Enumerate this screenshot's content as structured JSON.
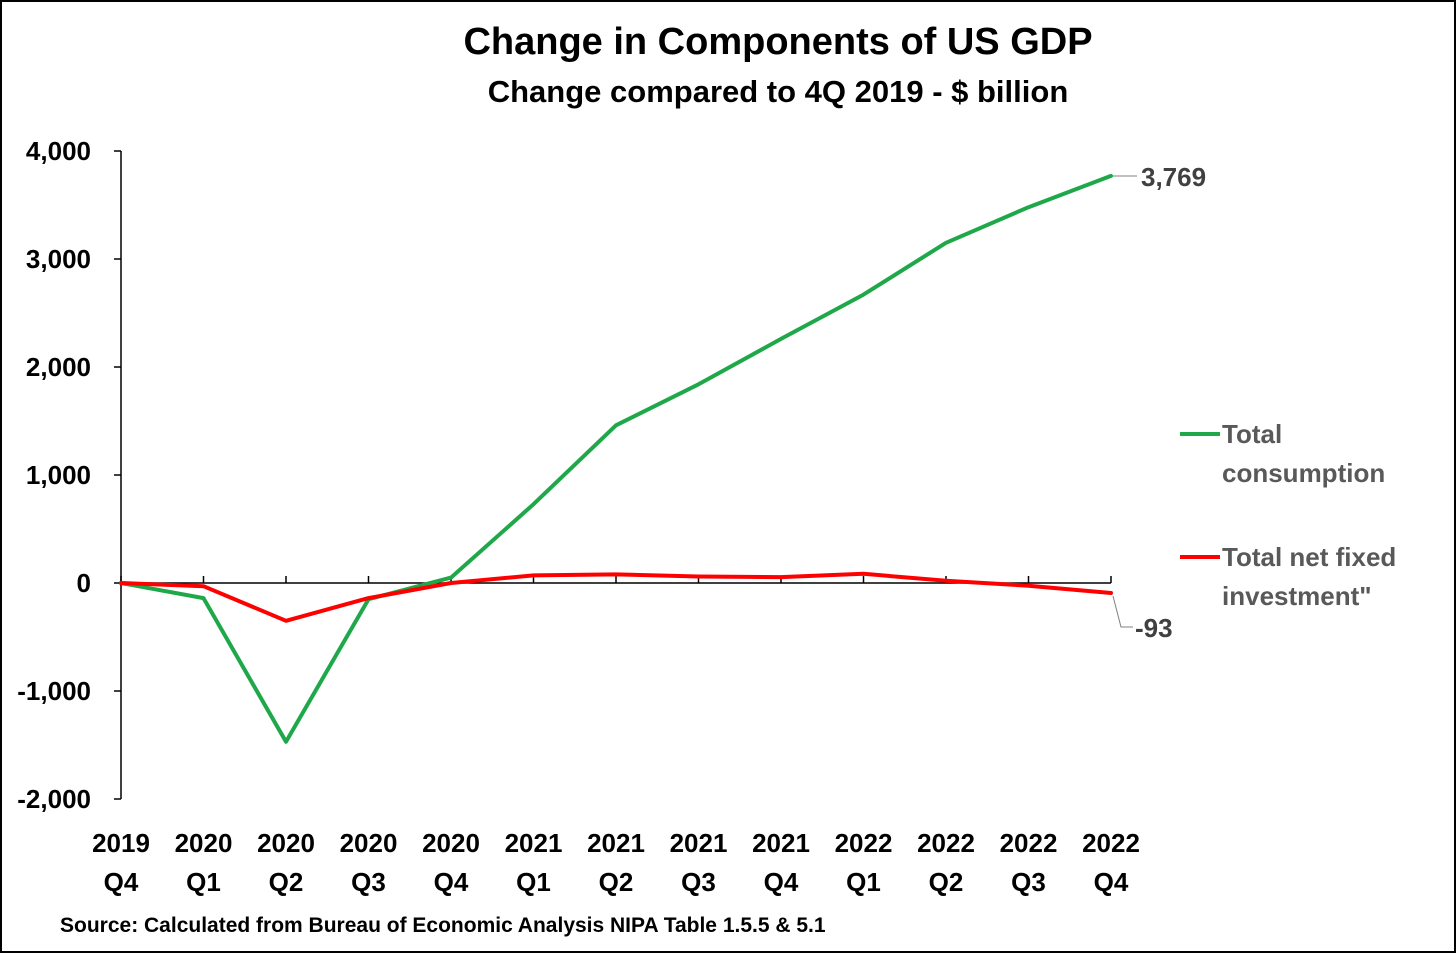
{
  "chart_data": {
    "type": "line",
    "title": "Change in Components of US GDP",
    "subtitle": "Change compared to 4Q 2019 - $ billion",
    "source": "Source: Calculated from Bureau of Economic Analysis NIPA Table 1.5.5 & 5.1",
    "categories": [
      [
        "2019",
        "Q4"
      ],
      [
        "2020",
        "Q1"
      ],
      [
        "2020",
        "Q2"
      ],
      [
        "2020",
        "Q3"
      ],
      [
        "2020",
        "Q4"
      ],
      [
        "2021",
        "Q1"
      ],
      [
        "2021",
        "Q2"
      ],
      [
        "2021",
        "Q3"
      ],
      [
        "2021",
        "Q4"
      ],
      [
        "2022",
        "Q1"
      ],
      [
        "2022",
        "Q2"
      ],
      [
        "2022",
        "Q3"
      ],
      [
        "2022",
        "Q4"
      ]
    ],
    "ylim": [
      -2000,
      4000
    ],
    "yticks": [
      -2000,
      -1000,
      0,
      1000,
      2000,
      3000,
      4000
    ],
    "ytick_labels": [
      "-2,000",
      "-1,000",
      "0",
      "1,000",
      "2,000",
      "3,000",
      "4,000"
    ],
    "grid": false,
    "legend_position": "right",
    "series": [
      {
        "name_lines": [
          "Total",
          "consumption"
        ],
        "color": "#1fa84a",
        "values": [
          0,
          -140,
          -1470,
          -150,
          50,
          730,
          1460,
          1840,
          2260,
          2670,
          3150,
          3480,
          3769
        ],
        "end_label": "3,769"
      },
      {
        "name_lines": [
          "Total net fixed",
          "investment\""
        ],
        "color": "#ff0000",
        "values": [
          0,
          -30,
          -350,
          -140,
          0,
          70,
          80,
          60,
          55,
          85,
          20,
          -25,
          -93
        ],
        "end_label": "-93"
      }
    ]
  }
}
